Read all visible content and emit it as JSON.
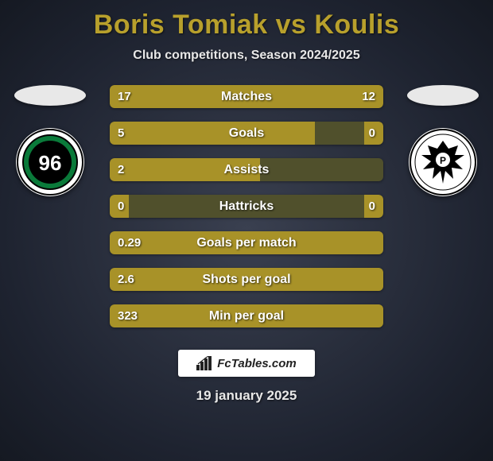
{
  "title": "Boris Tomiak vs Koulis",
  "subtitle": "Club competitions, Season 2024/2025",
  "date": "19 january 2025",
  "branding": "FcTables.com",
  "colors": {
    "accent": "#a89228",
    "bar_bg": "#50502c",
    "title_color": "#b8a02c",
    "text": "#ffffff"
  },
  "left_team": {
    "crest_text": "96",
    "crest_bg": "#ffffff",
    "crest_fg": "#0a7a3a"
  },
  "right_team": {
    "crest_text": "P",
    "crest_bg": "#ffffff",
    "crest_fg": "#000000"
  },
  "stats": [
    {
      "label": "Matches",
      "left_value": "17",
      "right_value": "12",
      "left_fill_pct": 58.6,
      "right_fill_pct": 41.4
    },
    {
      "label": "Goals",
      "left_value": "5",
      "right_value": "0",
      "left_fill_pct": 75.0,
      "right_fill_pct": 7.0
    },
    {
      "label": "Assists",
      "left_value": "2",
      "right_value": "",
      "left_fill_pct": 55.0,
      "right_fill_pct": 0.0
    },
    {
      "label": "Hattricks",
      "left_value": "0",
      "right_value": "0",
      "left_fill_pct": 7.0,
      "right_fill_pct": 7.0
    },
    {
      "label": "Goals per match",
      "left_value": "0.29",
      "right_value": "",
      "left_fill_pct": 100.0,
      "right_fill_pct": 0.0
    },
    {
      "label": "Shots per goal",
      "left_value": "2.6",
      "right_value": "",
      "left_fill_pct": 100.0,
      "right_fill_pct": 0.0
    },
    {
      "label": "Min per goal",
      "left_value": "323",
      "right_value": "",
      "left_fill_pct": 100.0,
      "right_fill_pct": 0.0
    }
  ]
}
